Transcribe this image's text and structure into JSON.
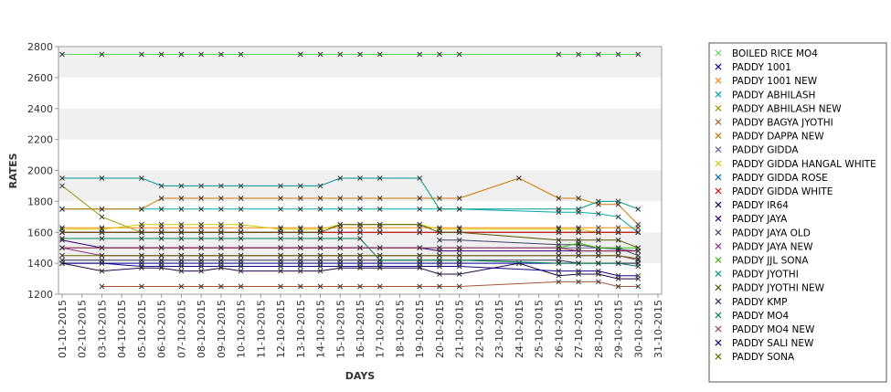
{
  "chart_data": {
    "type": "line",
    "title": "",
    "xlabel": "DAYS",
    "ylabel": "RATES",
    "x_labels": [
      "01-10-2015",
      "02-10-2015",
      "03-10-2015",
      "04-10-2015",
      "05-10-2015",
      "06-10-2015",
      "07-10-2015",
      "08-10-2015",
      "09-10-2015",
      "10-10-2015",
      "11-10-2015",
      "12-10-2015",
      "13-10-2015",
      "14-10-2015",
      "15-10-2015",
      "16-10-2015",
      "17-10-2015",
      "18-10-2015",
      "19-10-2015",
      "20-10-2015",
      "21-10-2015",
      "22-10-2015",
      "23-10-2015",
      "24-10-2015",
      "25-10-2015",
      "26-10-2015",
      "27-10-2015",
      "28-10-2015",
      "29-10-2015",
      "30-10-2015",
      "31-10-2015"
    ],
    "ylim": [
      1200,
      2800
    ],
    "yticks": [
      1200,
      1400,
      1600,
      1800,
      2000,
      2200,
      2400,
      2600,
      2800
    ],
    "grid": "alternating horizontal bands",
    "legend_position": "right",
    "series": [
      {
        "name": "BOILED RICE MO4",
        "color": "#55dd55",
        "values": [
          2750,
          null,
          2750,
          null,
          2750,
          2750,
          2750,
          2750,
          2750,
          2750,
          null,
          null,
          2750,
          2750,
          2750,
          2750,
          2750,
          null,
          2750,
          2750,
          2750,
          null,
          null,
          null,
          null,
          2750,
          2750,
          2750,
          2750,
          2750,
          null
        ]
      },
      {
        "name": "PADDY 1001",
        "color": "#000099",
        "values": [
          1400,
          null,
          1400,
          null,
          1400,
          1400,
          1400,
          1400,
          1400,
          1400,
          null,
          1400,
          1400,
          1400,
          1400,
          1400,
          1400,
          null,
          1400,
          1400,
          1400,
          null,
          null,
          1400,
          null,
          1400,
          1400,
          1400,
          1400,
          1400,
          null
        ]
      },
      {
        "name": "PADDY 1001 NEW",
        "color": "#ff8800",
        "values": [
          1630,
          null,
          1630,
          null,
          1630,
          1630,
          1630,
          1630,
          1630,
          1630,
          null,
          1630,
          1630,
          1630,
          1630,
          1630,
          1630,
          null,
          1630,
          1630,
          1630,
          null,
          null,
          null,
          null,
          1630,
          1630,
          1630,
          1630,
          1630,
          null
        ]
      },
      {
        "name": "PADDY ABHILASH",
        "color": "#00aaaa",
        "values": [
          1750,
          null,
          1750,
          null,
          1750,
          1750,
          1750,
          1750,
          1750,
          1750,
          null,
          1750,
          1750,
          1750,
          1750,
          1750,
          1750,
          null,
          1750,
          1750,
          1750,
          null,
          null,
          null,
          null,
          1730,
          1730,
          1720,
          1700,
          1600,
          null
        ]
      },
      {
        "name": "PADDY ABHILASH NEW",
        "color": "#999900",
        "values": [
          1900,
          null,
          1700,
          null,
          1600,
          1600,
          1600,
          1600,
          1600,
          1600,
          null,
          1600,
          1600,
          1600,
          1600,
          1600,
          1600,
          null,
          1600,
          1600,
          1600,
          null,
          null,
          null,
          null,
          1600,
          1600,
          1600,
          1600,
          1600,
          null
        ]
      },
      {
        "name": "PADDY BAGYA JYOTHI",
        "color": "#aa5533",
        "values": [
          null,
          null,
          1250,
          null,
          1250,
          null,
          1250,
          1250,
          1250,
          1250,
          null,
          1250,
          1250,
          1250,
          1250,
          1250,
          1250,
          null,
          1250,
          1250,
          1250,
          null,
          null,
          null,
          null,
          1280,
          1280,
          1280,
          1250,
          1250,
          null
        ]
      },
      {
        "name": "PADDY DAPPA NEW",
        "color": "#cc7700",
        "values": [
          1750,
          null,
          1750,
          null,
          1750,
          1820,
          1820,
          1820,
          1820,
          1820,
          null,
          1820,
          1820,
          1820,
          1820,
          1820,
          1820,
          null,
          1820,
          1820,
          1820,
          null,
          null,
          1950,
          null,
          1820,
          1820,
          1780,
          1780,
          1650,
          null
        ]
      },
      {
        "name": "PADDY GIDDA",
        "color": "#666699",
        "values": [
          1500,
          null,
          1500,
          null,
          1500,
          1500,
          1500,
          1500,
          1500,
          1500,
          null,
          1500,
          1500,
          1500,
          1500,
          1500,
          1500,
          null,
          1500,
          1500,
          1500,
          null,
          null,
          null,
          null,
          1500,
          1500,
          1500,
          1490,
          1480,
          null
        ]
      },
      {
        "name": "PADDY GIDDA HANGAL WHITE",
        "color": "#cccc00",
        "values": [
          1620,
          null,
          1620,
          null,
          1650,
          1650,
          1650,
          1650,
          1650,
          1650,
          null,
          1620,
          1620,
          1620,
          1650,
          1650,
          1650,
          null,
          1650,
          1620,
          1620,
          null,
          null,
          null,
          null,
          1620,
          1620,
          1600,
          1600,
          1600,
          null
        ]
      },
      {
        "name": "PADDY GIDDA ROSE",
        "color": "#0066aa",
        "values": [
          1600,
          null,
          1600,
          null,
          1600,
          1600,
          1600,
          1600,
          1600,
          1600,
          null,
          1600,
          1600,
          1600,
          1600,
          1600,
          1600,
          null,
          1600,
          1600,
          1600,
          null,
          null,
          null,
          null,
          1600,
          1600,
          1600,
          1600,
          1600,
          null
        ]
      },
      {
        "name": "PADDY GIDDA WHITE",
        "color": "#ee0000",
        "values": [
          1600,
          null,
          1600,
          null,
          1600,
          1600,
          1600,
          1600,
          1600,
          1600,
          null,
          1600,
          1600,
          1600,
          1600,
          1600,
          1600,
          null,
          1600,
          1600,
          1600,
          null,
          null,
          null,
          null,
          1600,
          1600,
          1600,
          1600,
          1600,
          null
        ]
      },
      {
        "name": "PADDY IR64",
        "color": "#220044",
        "values": [
          1400,
          null,
          1350,
          null,
          1370,
          1370,
          1350,
          1350,
          1370,
          1350,
          null,
          1350,
          1350,
          1350,
          1370,
          1370,
          1370,
          null,
          1370,
          1330,
          1330,
          null,
          null,
          1400,
          null,
          1320,
          1330,
          1330,
          1300,
          1300,
          null
        ]
      },
      {
        "name": "PADDY JAYA",
        "color": "#330077",
        "values": [
          1550,
          null,
          1500,
          null,
          1500,
          1500,
          1500,
          1500,
          1500,
          1500,
          null,
          1500,
          1500,
          1500,
          1500,
          1500,
          1500,
          null,
          1500,
          1480,
          1480,
          null,
          null,
          null,
          null,
          1480,
          1480,
          1480,
          1480,
          1480,
          null
        ]
      },
      {
        "name": "PADDY JAYA  OLD",
        "color": "#444466",
        "values": [
          null,
          null,
          null,
          null,
          null,
          null,
          null,
          null,
          null,
          null,
          null,
          null,
          null,
          null,
          null,
          null,
          null,
          null,
          null,
          1550,
          1550,
          null,
          null,
          null,
          null,
          1520,
          1520,
          1500,
          1500,
          1450,
          null
        ]
      },
      {
        "name": "PADDY JAYA NEW",
        "color": "#883388",
        "values": [
          1500,
          null,
          1450,
          null,
          1450,
          1450,
          1450,
          1450,
          1450,
          1450,
          null,
          1450,
          1450,
          1450,
          1450,
          1450,
          1450,
          null,
          1450,
          1450,
          1450,
          null,
          null,
          null,
          null,
          1450,
          1450,
          1450,
          1450,
          1420,
          null
        ]
      },
      {
        "name": "PADDY JJL SONA",
        "color": "#33bb00",
        "values": [
          null,
          null,
          null,
          null,
          null,
          null,
          null,
          null,
          null,
          null,
          null,
          null,
          null,
          null,
          null,
          null,
          null,
          null,
          null,
          null,
          null,
          null,
          null,
          null,
          null,
          1500,
          1530,
          1500,
          1500,
          1500,
          null
        ]
      },
      {
        "name": "PADDY JYOTHI",
        "color": "#009988",
        "values": [
          1950,
          null,
          1950,
          null,
          1950,
          1900,
          1900,
          1900,
          1900,
          1900,
          null,
          1900,
          1900,
          1900,
          1950,
          1950,
          1950,
          null,
          1950,
          1750,
          1750,
          null,
          null,
          null,
          null,
          1750,
          1750,
          1800,
          1800,
          1750,
          null
        ]
      },
      {
        "name": "PADDY JYOTHI NEW",
        "color": "#555500",
        "values": [
          1600,
          null,
          1600,
          null,
          1600,
          1600,
          1600,
          1600,
          1600,
          1600,
          null,
          1600,
          1600,
          1600,
          1650,
          1650,
          1650,
          null,
          1650,
          1600,
          1600,
          null,
          null,
          null,
          null,
          1550,
          1550,
          1550,
          1550,
          1500,
          null
        ]
      },
      {
        "name": "PADDY KMP",
        "color": "#333355",
        "values": [
          1420,
          null,
          1420,
          null,
          1420,
          1420,
          1420,
          1420,
          1420,
          1420,
          null,
          1420,
          1420,
          1420,
          1420,
          1420,
          1420,
          null,
          1420,
          1420,
          1420,
          null,
          null,
          null,
          null,
          1420,
          1400,
          1400,
          1400,
          1400,
          null
        ]
      },
      {
        "name": "PADDY MO4",
        "color": "#008855",
        "values": [
          1560,
          null,
          1560,
          null,
          1560,
          1560,
          1560,
          1560,
          1560,
          1560,
          null,
          1560,
          1560,
          1560,
          1560,
          1560,
          1420,
          null,
          1420,
          1420,
          1420,
          null,
          null,
          null,
          null,
          1400,
          1400,
          1400,
          1400,
          1380,
          null
        ]
      },
      {
        "name": "PADDY MO4 NEW",
        "color": "#993355",
        "values": [
          1500,
          null,
          1500,
          null,
          1500,
          1500,
          1500,
          1500,
          1500,
          1500,
          null,
          1500,
          1500,
          1500,
          1500,
          1500,
          1500,
          null,
          1500,
          1500,
          1500,
          null,
          null,
          null,
          null,
          1500,
          1480,
          1480,
          1480,
          1480,
          null
        ]
      },
      {
        "name": "PADDY SALI NEW",
        "color": "#110088",
        "values": [
          1400,
          null,
          1400,
          null,
          1380,
          1380,
          1380,
          1380,
          1380,
          1380,
          null,
          1380,
          1380,
          1380,
          1380,
          1380,
          1380,
          null,
          1380,
          1380,
          1380,
          null,
          null,
          null,
          null,
          1350,
          1350,
          1350,
          1320,
          1320,
          null
        ]
      },
      {
        "name": "PADDY SONA",
        "color": "#666600",
        "values": [
          1450,
          null,
          1450,
          null,
          1450,
          1450,
          1450,
          1450,
          1450,
          1450,
          null,
          1450,
          1450,
          1450,
          1450,
          1450,
          1450,
          null,
          1450,
          1450,
          1450,
          null,
          null,
          null,
          null,
          1450,
          1450,
          1450,
          1450,
          1430,
          null
        ]
      }
    ]
  }
}
